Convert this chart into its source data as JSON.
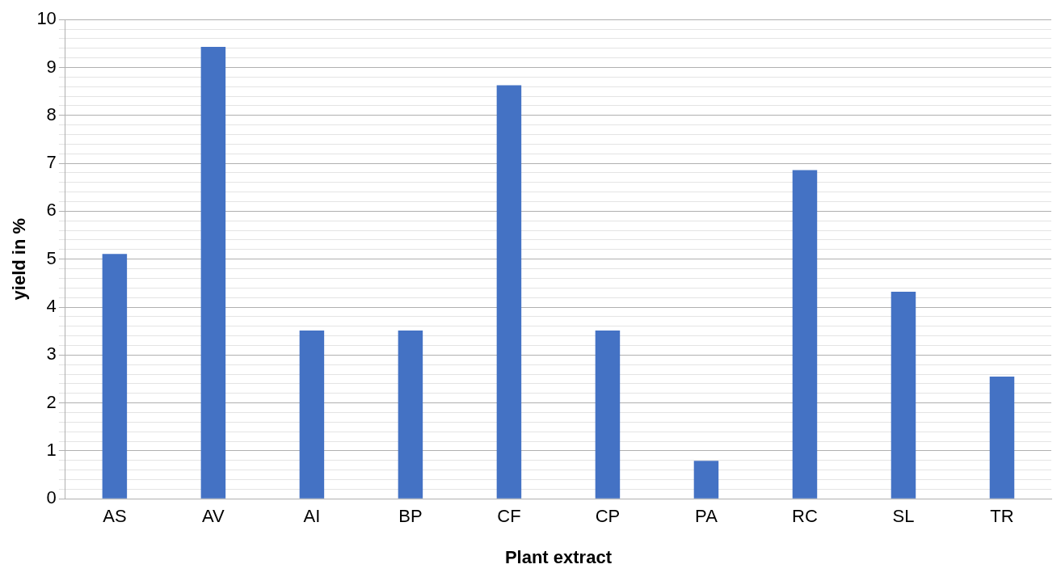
{
  "chart_data": {
    "type": "bar",
    "xlabel": "Plant extract",
    "ylabel": "yield in %",
    "categories": [
      "AS",
      "AV",
      "AI",
      "BP",
      "CF",
      "CP",
      "PA",
      "RC",
      "SL",
      "TR"
    ],
    "values": [
      5.11,
      9.43,
      3.51,
      3.51,
      8.63,
      3.51,
      0.79,
      6.86,
      4.32,
      2.55
    ],
    "color": "#4472c4",
    "ylim": [
      0,
      10
    ],
    "yticks": [
      0,
      {
        "value": 0.2,
        "label": null
      },
      {
        "value": 0.4,
        "label": null
      },
      {
        "value": 0.6,
        "label": null
      },
      {
        "value": 0.8,
        "label": null
      },
      1,
      {
        "value": 1.2,
        "label": null
      },
      {
        "value": 1.4,
        "label": null
      },
      {
        "value": 1.6,
        "label": null
      },
      {
        "value": 1.8,
        "label": null
      },
      2,
      {
        "value": 2.2,
        "label": null
      },
      {
        "value": 2.4,
        "label": null
      },
      {
        "value": 2.6,
        "label": null
      },
      {
        "value": 2.8,
        "label": null
      },
      3,
      {
        "value": 3.2,
        "label": null
      },
      {
        "value": 3.4,
        "label": null
      },
      {
        "value": 3.6,
        "label": null
      },
      {
        "value": 3.8,
        "label": null
      },
      4,
      {
        "value": 4.2,
        "label": null
      },
      {
        "value": 4.4,
        "label": null
      },
      {
        "value": 4.6,
        "label": null
      },
      {
        "value": 4.8,
        "label": null
      },
      5,
      {
        "value": 5.2,
        "label": null
      },
      {
        "value": 5.4,
        "label": null
      },
      {
        "value": 5.6,
        "label": null
      },
      {
        "value": 5.8,
        "label": null
      },
      6,
      {
        "value": 6.2,
        "label": null
      },
      {
        "value": 6.4,
        "label": null
      },
      {
        "value": 6.6,
        "label": null
      },
      {
        "value": 6.8,
        "label": null
      },
      7,
      {
        "value": 7.2,
        "label": null
      },
      {
        "value": 7.4,
        "label": null
      },
      {
        "value": 7.6,
        "label": null
      },
      {
        "value": 7.8,
        "label": null
      },
      8,
      {
        "value": 8.2,
        "label": null
      },
      {
        "value": 8.4,
        "label": null
      },
      {
        "value": 8.6,
        "label": null
      },
      {
        "value": 8.8,
        "label": null
      },
      9,
      {
        "value": 9.2,
        "label": null
      },
      {
        "value": 9.4,
        "label": null
      },
      {
        "value": 9.6,
        "label": null
      },
      {
        "value": 9.8,
        "label": null
      },
      10
    ],
    "grid": "y"
  }
}
